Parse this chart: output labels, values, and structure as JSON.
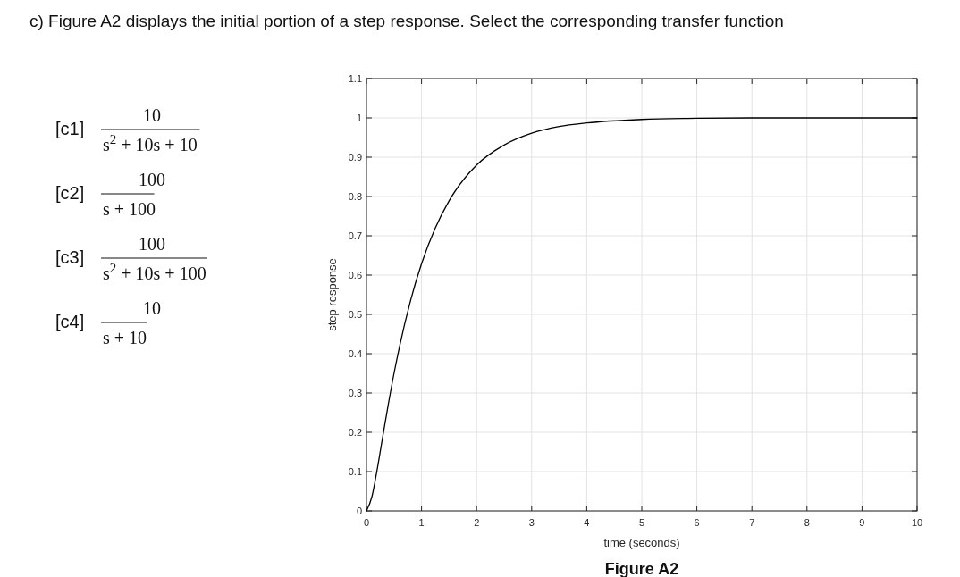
{
  "chart_data": {
    "type": "line",
    "title": "Figure A2",
    "xlabel": "time (seconds)",
    "ylabel": "step response",
    "annotations": [
      "c) Figure A2 displays the initial portion of a step response.  Select the corresponding transfer function",
      "[c1]",
      "10",
      "s$^{2}$ + 10s + 10",
      "[c2]",
      "100",
      "s + 100",
      "[c3]",
      "100",
      "s$^{2}$ + 10s + 100",
      "[c4]",
      "10",
      "s + 10"
    ],
    "x": [
      0,
      0.1,
      0.2,
      0.3,
      0.4,
      0.5,
      0.6,
      0.8,
      1,
      1.25,
      1.5,
      2,
      2.5,
      3,
      3.5,
      4,
      5,
      6,
      7,
      8,
      9,
      10
    ],
    "series": [
      {
        "color": "#000000",
        "values": [
          0,
          0.037,
          0.11,
          0.193,
          0.274,
          0.35,
          0.418,
          0.535,
          0.629,
          0.72,
          0.789,
          0.88,
          0.931,
          0.961,
          0.978,
          0.987,
          0.996,
          0.999,
          1,
          1,
          1,
          1
        ]
      }
    ],
    "xlim": [
      0,
      10
    ],
    "ylim": [
      0,
      1.1
    ],
    "xticks": [
      0,
      1,
      2,
      3,
      4,
      5,
      6,
      7,
      8,
      9,
      10
    ],
    "yticks": [
      0,
      0.1,
      0.2,
      0.3,
      0.4,
      0.5,
      0.6,
      0.7,
      0.8,
      0.9,
      1,
      1.1
    ],
    "grid": true
  }
}
